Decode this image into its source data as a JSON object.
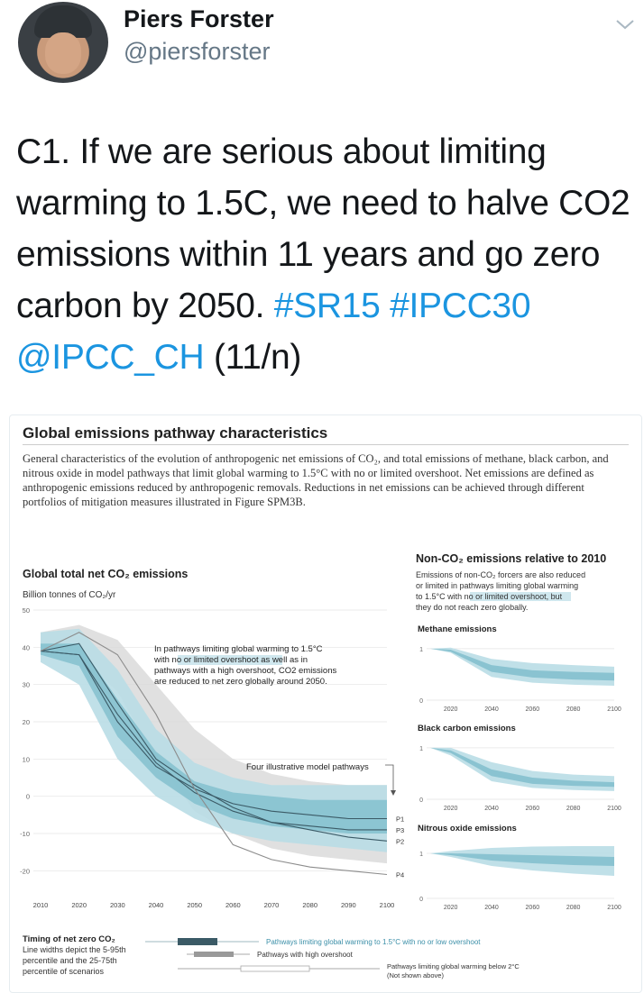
{
  "tweet": {
    "author_name": "Piers Forster",
    "handle": "@piersforster",
    "text_plain": "C1. If we are serious about limiting warming to 1.5C, we need to halve CO2 emissions within 11 years and go zero carbon by 2050.",
    "hashtag_1": "#SR15",
    "hashtag_2": "#IPCC30",
    "mention": "@IPCC_CH",
    "suffix": "(11/n)"
  },
  "figure": {
    "title": "Global emissions pathway characteristics",
    "description": "General characteristics of the evolution of anthropogenic net emissions of CO₂, and total emissions of methane, black carbon, and nitrous oxide in model pathways that limit global warming to 1.5°C with no or limited overshoot. Net emissions are defined as anthropogenic emissions reduced by anthropogenic removals. Reductions in net emissions can be achieved through different portfolios of mitigation measures illustrated in Figure SPM3B.",
    "main_title": "Global total net CO₂ emissions",
    "main_units": "Billion tonnes of CO₂/yr",
    "annotation_1": "In pathways limiting global warming to 1.5°C",
    "annotation_2": "with no or limited overshoot as well as in",
    "annotation_3": "pathways with a high overshoot, CO2 emissions",
    "annotation_4": "are reduced to net zero globally around 2050.",
    "four_pathways": "Four illustrative model pathways",
    "nonco2_title": "Non-CO₂ emissions relative to 2010",
    "nonco2_desc_1": "Emissions of non-CO₂ forcers are also reduced",
    "nonco2_desc_2": "or limited in pathways limiting global warming",
    "nonco2_desc_3": "to 1.5°C with no or limited overshoot, but",
    "nonco2_desc_4": "they do not reach zero globally.",
    "methane": "Methane emissions",
    "black_carbon": "Black carbon emissions",
    "nitrous": "Nitrous oxide emissions",
    "timing_1": "Timing of net zero CO₂",
    "timing_2": "Line widths depict the 5-95th",
    "timing_3": "percentile and the 25-75th",
    "timing_4": "percentile of scenarios",
    "legend_low": "Pathways limiting global warming to 1.5°C with no or low overshoot",
    "legend_high": "Pathways with high overshoot",
    "legend_2c_1": "Pathways limiting global warming below 2°C",
    "legend_2c_2": "(Not shown above)"
  },
  "chart_data": [
    {
      "type": "area",
      "title": "Global total net CO₂ emissions",
      "ylabel": "Billion tonnes of CO₂/yr",
      "x": [
        2010,
        2020,
        2030,
        2040,
        2050,
        2060,
        2070,
        2080,
        2090,
        2100
      ],
      "xlim": [
        2010,
        2100
      ],
      "ylim": [
        -25,
        50
      ],
      "yticks": [
        50,
        40,
        30,
        20,
        10,
        0,
        -10,
        -20
      ],
      "series": [
        {
          "values": [
            39,
            38,
            20,
            8,
            2,
            -2,
            -4,
            -5,
            -6,
            -6
          ]
        },
        {
          "values": [
            39,
            41,
            25,
            10,
            3,
            -3,
            -7,
            -9,
            -11,
            -12
          ]
        },
        {
          "values": [
            39,
            38,
            22,
            9,
            1,
            -4,
            -7,
            -8,
            -9,
            -9
          ]
        },
        {
          "values": [
            39,
            44,
            38,
            22,
            2,
            -13,
            -17,
            -19,
            -20,
            -21
          ]
        }
      ],
      "pathway_labels": [
        "P1",
        "P2",
        "P3",
        "P4"
      ],
      "band_outer_upper": [
        44,
        45,
        34,
        18,
        9,
        5,
        3,
        3,
        3,
        3
      ],
      "band_outer_lower": [
        36,
        30,
        10,
        0,
        -6,
        -10,
        -12,
        -13,
        -14,
        -15
      ],
      "band_inner_upper": [
        41,
        41,
        26,
        12,
        4,
        1,
        0,
        -1,
        -1,
        -1
      ],
      "band_inner_lower": [
        38,
        35,
        16,
        5,
        -2,
        -6,
        -8,
        -9,
        -10,
        -10
      ],
      "high_overshoot_upper": [
        44,
        46,
        42,
        30,
        18,
        10,
        6,
        4,
        3,
        3
      ],
      "high_overshoot_lower": [
        38,
        38,
        28,
        10,
        -4,
        -10,
        -14,
        -16,
        -17,
        -18
      ]
    },
    {
      "type": "area",
      "title": "Methane emissions",
      "x": [
        2010,
        2020,
        2040,
        2060,
        2080,
        2100
      ],
      "xticks": [
        2020,
        2040,
        2060,
        2080,
        2100
      ],
      "yticks": [
        1,
        0
      ],
      "band_outer_upper": [
        1,
        1.02,
        0.8,
        0.72,
        0.68,
        0.65
      ],
      "band_outer_lower": [
        1,
        0.92,
        0.45,
        0.34,
        0.3,
        0.28
      ],
      "band_inner_upper": [
        1,
        0.98,
        0.68,
        0.58,
        0.55,
        0.53
      ],
      "band_inner_lower": [
        1,
        0.94,
        0.55,
        0.44,
        0.4,
        0.38
      ]
    },
    {
      "type": "area",
      "title": "Black carbon emissions",
      "x": [
        2010,
        2020,
        2040,
        2060,
        2080,
        2100
      ],
      "xticks": [
        2020,
        2040,
        2060,
        2080,
        2100
      ],
      "yticks": [
        1,
        0
      ],
      "band_outer_upper": [
        1,
        1.0,
        0.72,
        0.55,
        0.48,
        0.45
      ],
      "band_outer_lower": [
        1,
        0.85,
        0.35,
        0.22,
        0.18,
        0.16
      ],
      "band_inner_upper": [
        1,
        0.95,
        0.58,
        0.42,
        0.36,
        0.33
      ],
      "band_inner_lower": [
        1,
        0.9,
        0.45,
        0.3,
        0.26,
        0.24
      ]
    },
    {
      "type": "area",
      "title": "Nitrous oxide emissions",
      "x": [
        2010,
        2020,
        2040,
        2060,
        2080,
        2100
      ],
      "xticks": [
        2020,
        2040,
        2060,
        2080,
        2100
      ],
      "yticks": [
        1,
        0
      ],
      "band_outer_upper": [
        1,
        1.05,
        1.12,
        1.15,
        1.16,
        1.16
      ],
      "band_outer_lower": [
        1,
        0.92,
        0.72,
        0.62,
        0.55,
        0.5
      ],
      "band_inner_upper": [
        1,
        1.0,
        0.98,
        0.96,
        0.94,
        0.92
      ],
      "band_inner_lower": [
        1,
        0.96,
        0.84,
        0.78,
        0.74,
        0.72
      ]
    }
  ],
  "colors": {
    "link": "#1b95e0",
    "band_outer": "#b9dde6",
    "band_inner": "#7cbccb",
    "high_overshoot": "#d8d8d8",
    "pathway_line": "#3b5a66",
    "p4_line": "#8c8c8c",
    "highlight": "#cfe7ee"
  }
}
